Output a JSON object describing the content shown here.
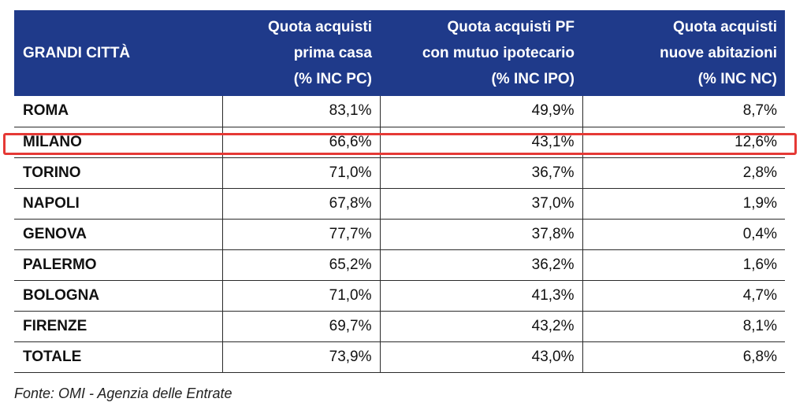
{
  "table": {
    "header": {
      "col0": "GRANDI CITTÀ",
      "col1": [
        "Quota acquisti",
        "prima casa",
        "(% INC PC)"
      ],
      "col2": [
        "Quota acquisti PF",
        "con mutuo ipotecario",
        "(% INC IPO)"
      ],
      "col3": [
        "Quota acquisti",
        "nuove abitazioni",
        "(% INC NC)"
      ]
    },
    "rows": [
      {
        "city": "ROMA",
        "pc": "83,1%",
        "ipo": "49,9%",
        "nc": "8,7%"
      },
      {
        "city": "MILANO",
        "pc": "66,6%",
        "ipo": "43,1%",
        "nc": "12,6%"
      },
      {
        "city": "TORINO",
        "pc": "71,0%",
        "ipo": "36,7%",
        "nc": "2,8%"
      },
      {
        "city": "NAPOLI",
        "pc": "67,8%",
        "ipo": "37,0%",
        "nc": "1,9%"
      },
      {
        "city": "GENOVA",
        "pc": "77,7%",
        "ipo": "37,8%",
        "nc": "0,4%"
      },
      {
        "city": "PALERMO",
        "pc": "65,2%",
        "ipo": "36,2%",
        "nc": "1,6%"
      },
      {
        "city": "BOLOGNA",
        "pc": "71,0%",
        "ipo": "41,3%",
        "nc": "4,7%"
      },
      {
        "city": "FIRENZE",
        "pc": "69,7%",
        "ipo": "43,2%",
        "nc": "8,1%"
      },
      {
        "city": "TOTALE",
        "pc": "73,9%",
        "ipo": "43,0%",
        "nc": "6,8%"
      }
    ]
  },
  "highlight": {
    "row": "MILANO",
    "color": "#e53935"
  },
  "colors": {
    "header_bg": "#1f3a8a",
    "header_text": "#ffffff"
  },
  "source": "Fonte: OMI - Agenzia delle Entrate"
}
